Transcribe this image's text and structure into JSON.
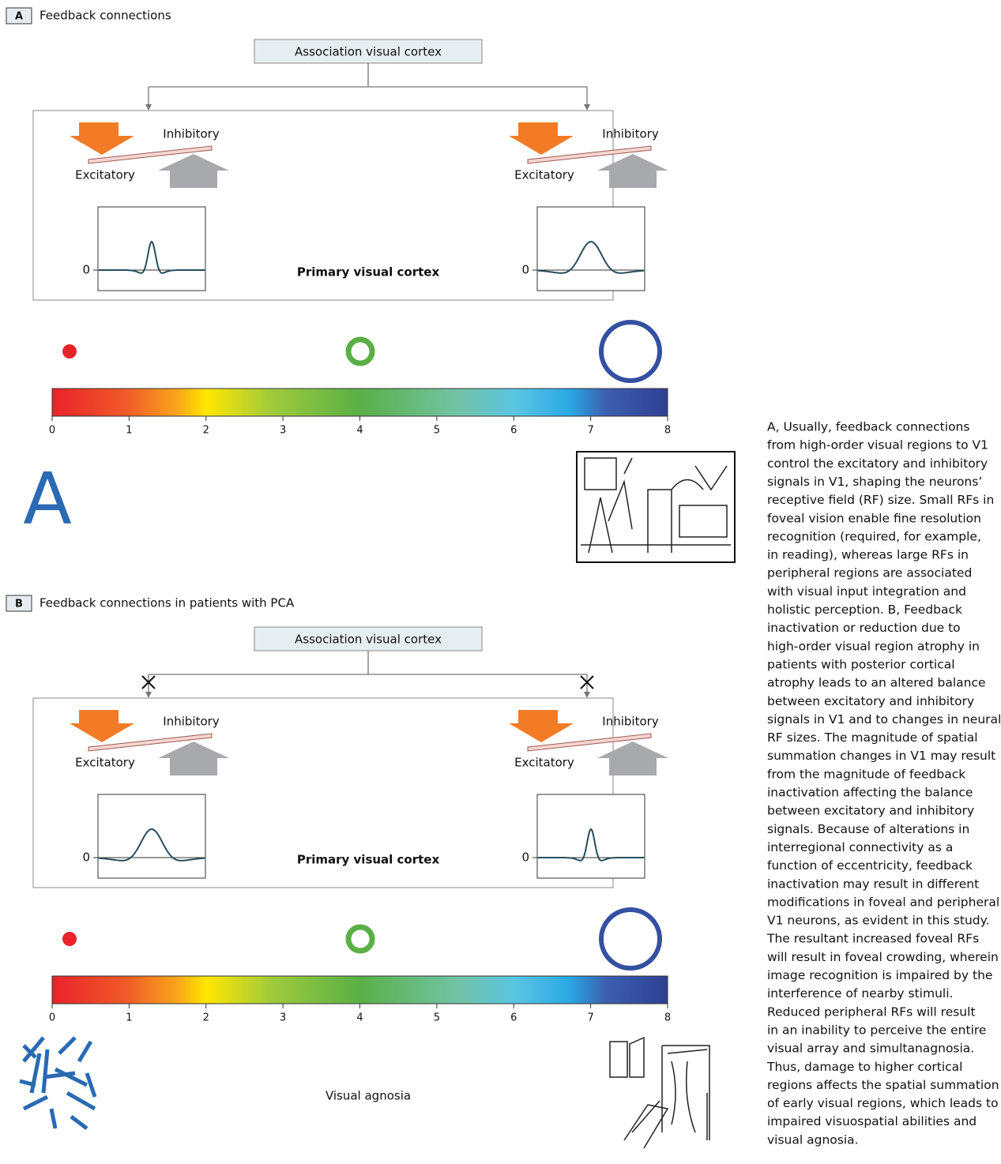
{
  "panels": [
    {
      "label": "A",
      "title": "Feedback connections",
      "source": "Association visual cortex",
      "target": "Primary visual cortex",
      "left": {
        "inhibitory": "Inhibitory",
        "excitatory": "Excitatory",
        "zero": "0"
      },
      "right": {
        "inhibitory": "Inhibitory",
        "excitatory": "Excitatory",
        "zero": "0"
      },
      "scale_ticks": [
        "0",
        "1",
        "2",
        "3",
        "4",
        "5",
        "6",
        "7",
        "8"
      ],
      "stimulus": "A"
    },
    {
      "label": "B",
      "title": "Feedback connections in patients with PCA",
      "source": "Association visual cortex",
      "target": "Primary visual cortex",
      "left": {
        "inhibitory": "Inhibitory",
        "excitatory": "Excitatory",
        "zero": "0"
      },
      "right": {
        "inhibitory": "Inhibitory",
        "excitatory": "Excitatory",
        "zero": "0"
      },
      "scale_ticks": [
        "0",
        "1",
        "2",
        "3",
        "4",
        "5",
        "6",
        "7",
        "8"
      ],
      "outcome": "Visual agnosia"
    }
  ],
  "caption": [
    "A, Usually, feedback connections",
    "from high-order visual regions to V1",
    "control the excitatory and inhibitory",
    "signals in V1, shaping the neurons’",
    "receptive field (RF) size. Small RFs in",
    "foveal vision enable fine resolution",
    "recognition (required, for example,",
    "in reading), whereas large RFs in",
    "peripheral regions are associated",
    "with visual input integration and",
    "holistic perception. B, Feedback",
    "inactivation or reduction due to",
    "high-order visual region atrophy in",
    "patients with posterior cortical",
    "atrophy leads to an altered balance",
    "between excitatory and inhibitory",
    "signals in V1 and to changes in neural",
    "RF sizes. The magnitude of spatial",
    "summation changes in V1 may result",
    "from the magnitude of feedback",
    "inactivation affecting the balance",
    "between excitatory and inhibitory",
    "signals. Because of alterations in",
    "interregional connectivity as a",
    "function of eccentricity, feedback",
    "inactivation may result in different",
    "modifications in foveal and peripheral",
    "V1 neurons, as evident in this study.",
    "The resultant increased foveal RFs",
    "will result in foveal crowding, wherein",
    "image recognition is impaired by the",
    "interference of nearby stimuli.",
    "Reduced peripheral RFs will result",
    "in an inability to perceive the entire",
    "visual array and simultanagnosia.",
    "Thus, damage to higher cortical",
    "regions affects the spatial summation",
    "of early visual regions, which leads to",
    "impaired visuospatial abilities and",
    "visual agnosia."
  ]
}
